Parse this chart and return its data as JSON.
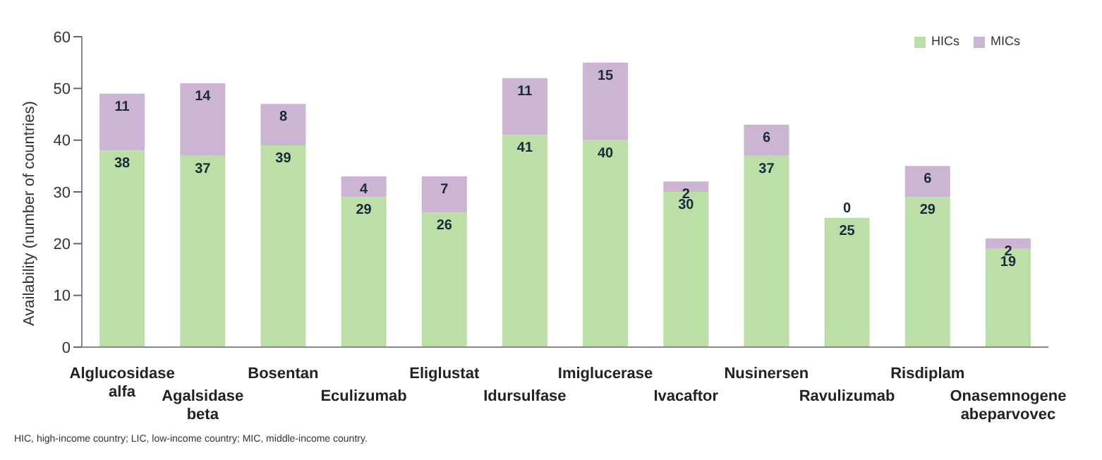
{
  "chart_data": {
    "type": "bar",
    "stacked": true,
    "ylabel": "Availability (number of countries)",
    "categories": [
      "Alglucosidase alfa",
      "Agalsidase beta",
      "Bosentan",
      "Eculizumab",
      "Eliglustat",
      "Idursulfase",
      "Imiglucerase",
      "Ivacaftor",
      "Nusinersen",
      "Ravulizumab",
      "Risdiplam",
      "Onasemnogene abeparvovec"
    ],
    "series": [
      {
        "name": "HICs",
        "color": "#bcdfa8",
        "values": [
          38,
          37,
          39,
          29,
          26,
          41,
          40,
          30,
          37,
          25,
          29,
          19
        ]
      },
      {
        "name": "MICs",
        "color": "#cbb5d3",
        "values": [
          11,
          14,
          8,
          4,
          7,
          11,
          15,
          2,
          6,
          0,
          6,
          2
        ]
      }
    ],
    "ylim": [
      0,
      60
    ],
    "yticks": [
      0,
      10,
      20,
      30,
      40,
      50,
      60
    ],
    "legend": "top right",
    "data_labels": true,
    "annotations": [
      "HIC, high-income country; LIC, low-income country; MIC, middle-income country."
    ]
  }
}
